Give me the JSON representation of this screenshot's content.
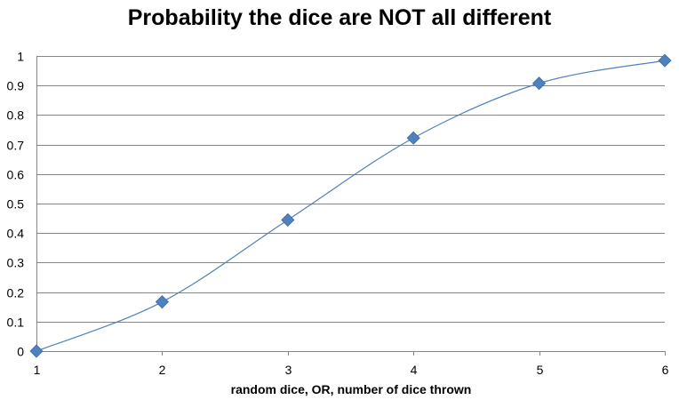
{
  "chart_data": {
    "type": "line",
    "title": "Probability the dice are NOT all different",
    "xlabel": "random dice, OR, number of dice thrown",
    "ylabel": "",
    "x": [
      1,
      2,
      3,
      4,
      5,
      6
    ],
    "series": [
      {
        "values": [
          0,
          0.1667,
          0.4444,
          0.7222,
          0.9074,
          0.9846
        ]
      }
    ],
    "x_ticks": [
      "1",
      "2",
      "3",
      "4",
      "5",
      "6"
    ],
    "y_ticks": [
      "0",
      "0.1",
      "0.2",
      "0.3",
      "0.4",
      "0.5",
      "0.6",
      "0.7",
      "0.8",
      "0.9",
      "1"
    ],
    "xlim": [
      1,
      6
    ],
    "ylim": [
      0,
      1
    ],
    "grid": true,
    "smooth": true,
    "marker": "diamond",
    "legend": "none",
    "colors": {
      "series": "#4f81bd",
      "grid": "#868686",
      "axis": "#868686"
    }
  }
}
